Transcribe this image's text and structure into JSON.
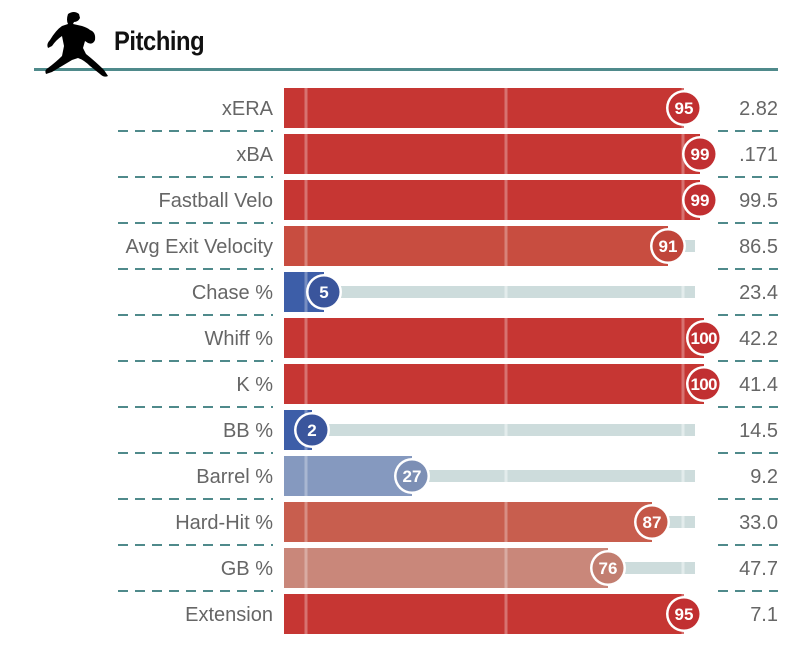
{
  "header": {
    "title": "Pitching",
    "icon": "pitcher-silhouette-icon"
  },
  "colors": {
    "rule": "#4f8a8b",
    "track": "#cddcdc",
    "label": "#666666"
  },
  "chart_data": {
    "type": "bar",
    "title": "Pitching",
    "xlabel": "",
    "ylabel": "",
    "xlim": [
      0,
      100
    ],
    "grid": true,
    "categories": [
      "xERA",
      "xBA",
      "Fastball Velo",
      "Avg Exit Velocity",
      "Chase %",
      "Whiff %",
      "K %",
      "BB %",
      "Barrel %",
      "Hard-Hit %",
      "GB %",
      "Extension"
    ],
    "percentiles": [
      95,
      99,
      99,
      91,
      5,
      100,
      100,
      2,
      27,
      87,
      76,
      95
    ],
    "percentile_labels": [
      "95",
      "99",
      "99",
      "91",
      "5",
      "100",
      "100",
      "2",
      "27",
      "87",
      "76",
      "95"
    ],
    "values": [
      "2.82",
      ".171",
      "99.5",
      "86.5",
      "23.4",
      "42.2",
      "41.4",
      "14.5",
      "9.2",
      "33.0",
      "47.7",
      "7.1"
    ],
    "bar_colors": [
      "#c63633",
      "#c63633",
      "#c63633",
      "#c84d40",
      "#3d5ea8",
      "#c63633",
      "#c63633",
      "#3d5ea8",
      "#8599bf",
      "#c85e4e",
      "#c9877a",
      "#c63633"
    ],
    "circle_colors": [
      "#c12f31",
      "#c12f31",
      "#c12f31",
      "#c0453a",
      "#3a559c",
      "#c12f31",
      "#c12f31",
      "#3a559c",
      "#7c8fb5",
      "#c45747",
      "#c27e70",
      "#c12f31"
    ]
  }
}
